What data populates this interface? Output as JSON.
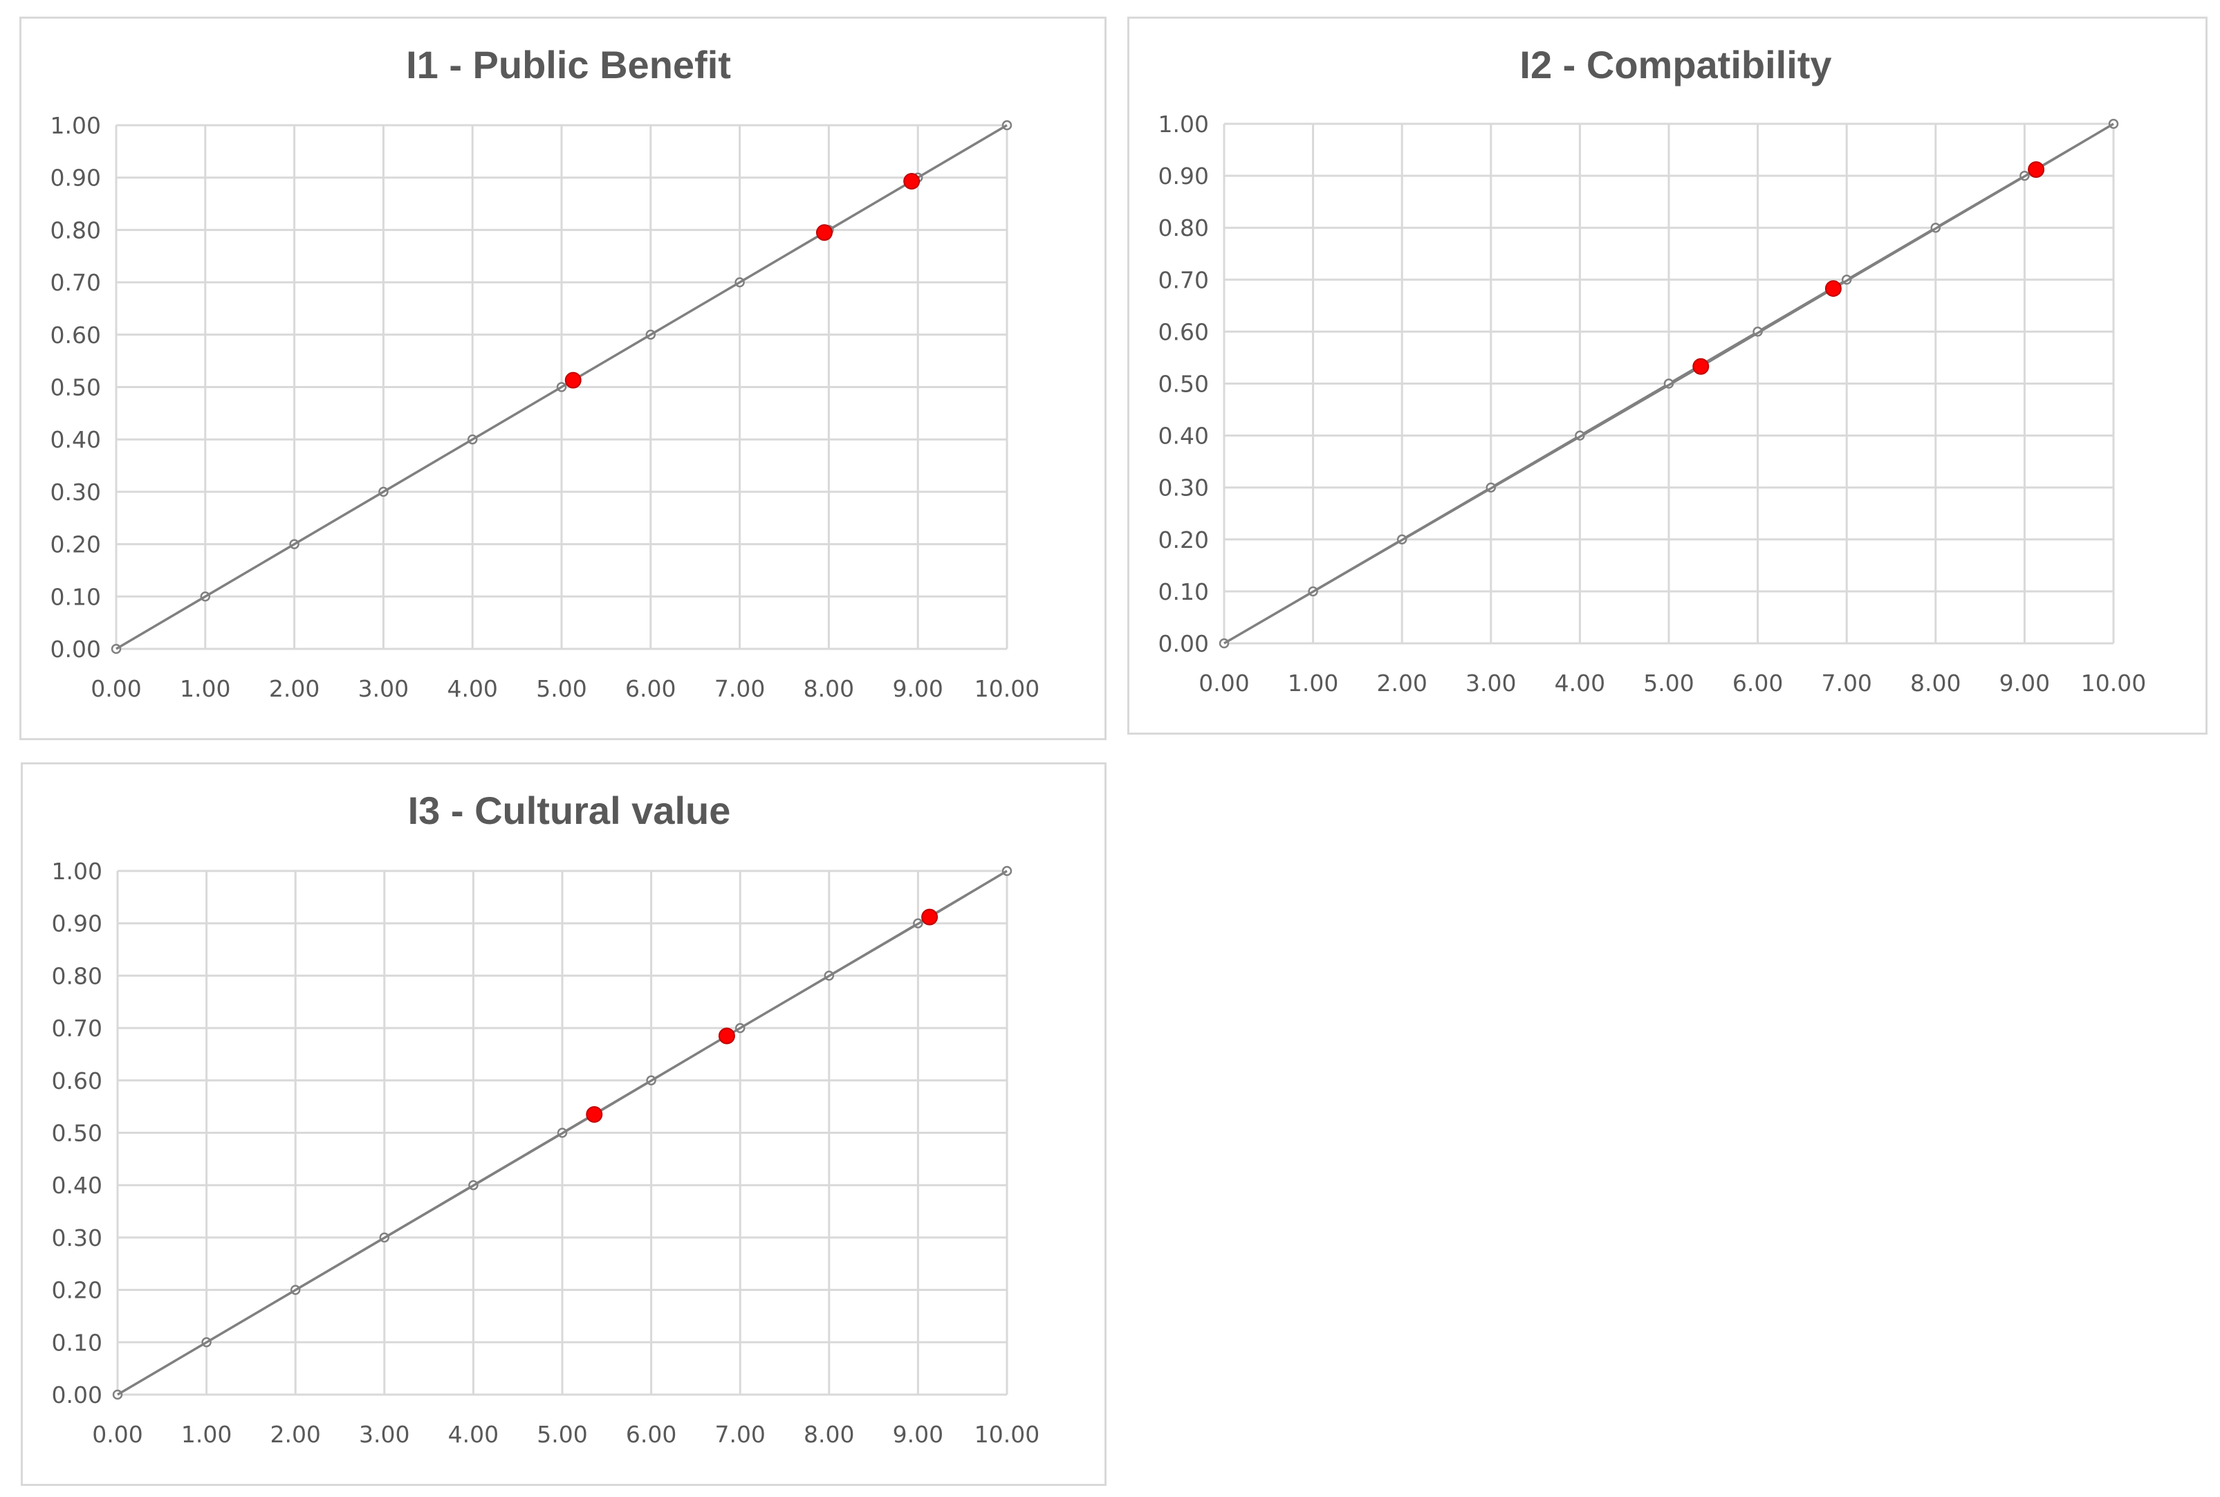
{
  "chart_data": [
    {
      "type": "line",
      "title": "I1 - Public Benefit",
      "xlabel": "",
      "ylabel": "",
      "xlim": [
        0,
        10
      ],
      "ylim": [
        0,
        1
      ],
      "x_ticks": [
        "0.00",
        "1.00",
        "2.00",
        "3.00",
        "4.00",
        "5.00",
        "6.00",
        "7.00",
        "8.00",
        "9.00",
        "10.00"
      ],
      "y_ticks": [
        "0.00",
        "0.10",
        "0.20",
        "0.30",
        "0.40",
        "0.50",
        "0.60",
        "0.70",
        "0.80",
        "0.90",
        "1.00"
      ],
      "grid": true,
      "legend": "none",
      "series": [
        {
          "x": [
            0,
            1,
            2,
            3,
            4,
            5,
            6,
            7,
            8,
            9,
            10
          ],
          "y": [
            0,
            0.1,
            0.2,
            0.3,
            0.4,
            0.5,
            0.6,
            0.7,
            0.8,
            0.9,
            1.0
          ],
          "color": "#808080",
          "marker": "hollow-circle"
        },
        {
          "x": [
            0,
            5.13,
            7.95,
            8.93,
            10
          ],
          "y": [
            0,
            0.513,
            0.795,
            0.893,
            1.0
          ],
          "color": "#808080",
          "marker": "none"
        },
        {
          "x": [
            5.13,
            7.95,
            8.93
          ],
          "y": [
            0.513,
            0.795,
            0.893
          ],
          "color": "#ff0000",
          "marker": "filled-circle",
          "line": false
        }
      ]
    },
    {
      "type": "line",
      "title": "I2 - Compatibility",
      "xlabel": "",
      "ylabel": "",
      "xlim": [
        0,
        10
      ],
      "ylim": [
        0,
        1
      ],
      "x_ticks": [
        "0.00",
        "1.00",
        "2.00",
        "3.00",
        "4.00",
        "5.00",
        "6.00",
        "7.00",
        "8.00",
        "9.00",
        "10.00"
      ],
      "y_ticks": [
        "0.00",
        "0.10",
        "0.20",
        "0.30",
        "0.40",
        "0.50",
        "0.60",
        "0.70",
        "0.80",
        "0.90",
        "1.00"
      ],
      "grid": true,
      "legend": "none",
      "series": [
        {
          "x": [
            0,
            1,
            2,
            3,
            4,
            5,
            6,
            7,
            8,
            9,
            10
          ],
          "y": [
            0,
            0.1,
            0.2,
            0.3,
            0.4,
            0.5,
            0.6,
            0.7,
            0.8,
            0.9,
            1.0
          ],
          "color": "#808080",
          "marker": "hollow-circle"
        },
        {
          "x": [
            0,
            5.36,
            6.85,
            9.13,
            10
          ],
          "y": [
            0,
            0.533,
            0.683,
            0.912,
            1.0
          ],
          "color": "#808080",
          "marker": "none"
        },
        {
          "x": [
            5.36,
            6.85,
            9.13
          ],
          "y": [
            0.533,
            0.683,
            0.912
          ],
          "color": "#ff0000",
          "marker": "filled-circle",
          "line": false
        }
      ]
    },
    {
      "type": "line",
      "title": "I3 - Cultural value",
      "xlabel": "",
      "ylabel": "",
      "xlim": [
        0,
        10
      ],
      "ylim": [
        0,
        1
      ],
      "x_ticks": [
        "0.00",
        "1.00",
        "2.00",
        "3.00",
        "4.00",
        "5.00",
        "6.00",
        "7.00",
        "8.00",
        "9.00",
        "10.00"
      ],
      "y_ticks": [
        "0.00",
        "0.10",
        "0.20",
        "0.30",
        "0.40",
        "0.50",
        "0.60",
        "0.70",
        "0.80",
        "0.90",
        "1.00"
      ],
      "grid": true,
      "legend": "none",
      "series": [
        {
          "x": [
            0,
            1,
            2,
            3,
            4,
            5,
            6,
            7,
            8,
            9,
            10
          ],
          "y": [
            0,
            0.1,
            0.2,
            0.3,
            0.4,
            0.5,
            0.6,
            0.7,
            0.8,
            0.9,
            1.0
          ],
          "color": "#808080",
          "marker": "hollow-circle"
        },
        {
          "x": [
            0,
            5.36,
            6.85,
            9.13,
            10
          ],
          "y": [
            0,
            0.535,
            0.685,
            0.912,
            1.0
          ],
          "color": "#808080",
          "marker": "none"
        },
        {
          "x": [
            5.36,
            6.85,
            9.13
          ],
          "y": [
            0.535,
            0.685,
            0.912
          ],
          "color": "#ff0000",
          "marker": "filled-circle",
          "line": false
        }
      ]
    }
  ]
}
